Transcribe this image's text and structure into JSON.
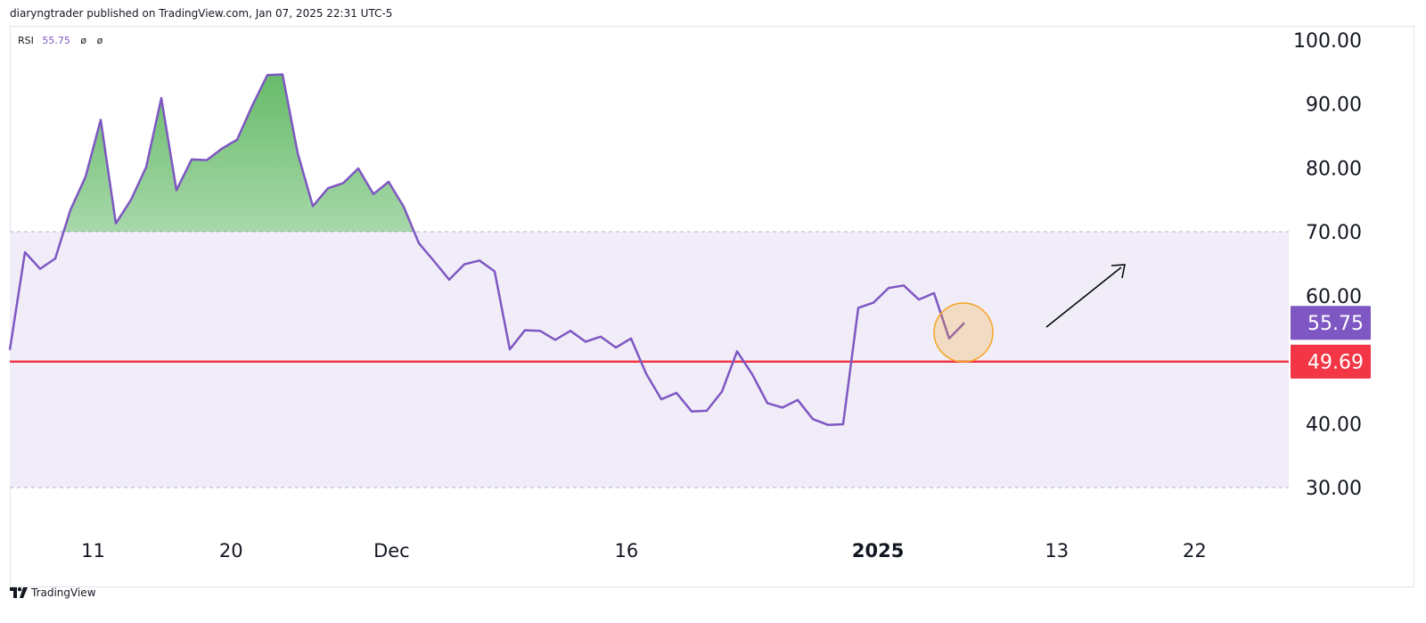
{
  "header": {
    "published": "diaryngtrader published on TradingView.com, Jan 07, 2025 22:31 UTC-5"
  },
  "legend": {
    "name": "RSI",
    "value": "55.75",
    "na1": "ø",
    "na2": "ø"
  },
  "footer": {
    "brand": "TradingView",
    "logo_icon": "tradingview-logo-icon"
  },
  "colors": {
    "rsi_line": "#7e57c2",
    "band_fill": "#f1edf8",
    "band_line": "#b8aed1",
    "level_line": "#f23645",
    "overbought_fill": "#4caf50",
    "annotation_circle": "#f5a623",
    "arrow": "#000000"
  },
  "chart_data": {
    "type": "line",
    "title": "RSI",
    "xlabel": "",
    "ylabel": "",
    "ylim": [
      20,
      100
    ],
    "yticks": [
      "100.00",
      "90.00",
      "80.00",
      "70.00",
      "60.00",
      "40.00",
      "30.00"
    ],
    "yticks_values": [
      100,
      90,
      80,
      70,
      60,
      40,
      30
    ],
    "xticks": [
      {
        "label": "11",
        "index": 5.5,
        "bold": false
      },
      {
        "label": "20",
        "index": 14.6,
        "bold": false
      },
      {
        "label": "Dec",
        "index": 25.2,
        "bold": false
      },
      {
        "label": "16",
        "index": 40.7,
        "bold": false
      },
      {
        "label": "2025",
        "index": 57.3,
        "bold": true
      },
      {
        "label": "13",
        "index": 69.1,
        "bold": false
      },
      {
        "label": "22",
        "index": 78.2,
        "bold": false
      }
    ],
    "series": [
      {
        "name": "RSI",
        "values": [
          51.5,
          66.8,
          64.2,
          65.8,
          73.4,
          78.6,
          87.5,
          71.3,
          75.0,
          80.1,
          90.9,
          76.5,
          81.3,
          81.2,
          83.0,
          84.4,
          89.7,
          94.5,
          94.6,
          82.3,
          74.0,
          76.8,
          77.6,
          79.9,
          75.9,
          77.8,
          73.9,
          68.2,
          65.4,
          62.5,
          64.9,
          65.5,
          63.8,
          51.6,
          54.6,
          54.5,
          53.1,
          54.5,
          52.8,
          53.6,
          51.9,
          53.3,
          47.8,
          43.8,
          44.8,
          41.9,
          42.0,
          45.0,
          51.3,
          47.7,
          43.2,
          42.5,
          43.7,
          40.7,
          39.8,
          39.9,
          58.1,
          58.9,
          61.2,
          61.6,
          59.4,
          60.4,
          53.3,
          55.75
        ]
      }
    ],
    "levels": {
      "upper": 70,
      "lower": 30,
      "horizontal_line": 49.69,
      "last_value": 55.75
    },
    "price_labels": [
      {
        "text": "55.75",
        "value": 55.75,
        "color": "#7e57c2"
      },
      {
        "text": "49.69",
        "value": 49.69,
        "color": "#f23645"
      }
    ]
  }
}
